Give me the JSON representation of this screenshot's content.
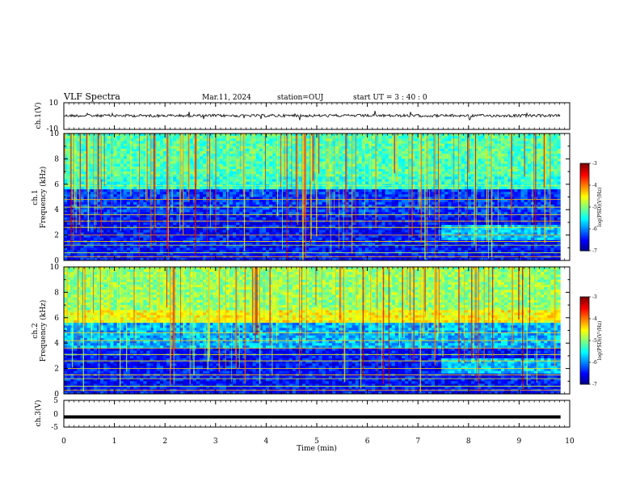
{
  "header": {
    "title": "VLF Spectra",
    "date": "Mar.11, 2024",
    "station": "station=OUJ",
    "start": "start  UT  =   3  : 40 : 0"
  },
  "chart_data": [
    {
      "type": "line",
      "name": "ch1-waveform",
      "ylabel": "ch.1(V)",
      "ylim": [
        -10,
        10
      ],
      "yticks": [
        "10",
        "-10"
      ],
      "xlim": [
        0,
        10
      ]
    },
    {
      "type": "heatmap",
      "name": "ch1-spectrogram",
      "ylabel": "ch.1\nFrequency (kHz)",
      "ylabel_line1": "ch.1",
      "ylabel_line2": "Frequency  (kHz)",
      "ylim": [
        0,
        10
      ],
      "yticks": [
        "0",
        "2",
        "4",
        "6",
        "8",
        "10"
      ],
      "xlim": [
        0,
        10
      ],
      "colorbar": {
        "label": "log(PSD)(V²/Hz)",
        "range": [
          -7,
          -3
        ],
        "ticks": [
          "-3",
          "-4",
          "-5",
          "-6",
          "-7"
        ]
      }
    },
    {
      "type": "heatmap",
      "name": "ch2-spectrogram",
      "ylabel_line1": "ch.2",
      "ylabel_line2": "Frequency  (kHz)",
      "ylim": [
        0,
        10
      ],
      "yticks": [
        "0",
        "2",
        "4",
        "6",
        "8",
        "10"
      ],
      "xlim": [
        0,
        10
      ],
      "colorbar": {
        "label": "log(PSD)(V²/Hz)",
        "range": [
          -7,
          -3
        ],
        "ticks": [
          "-3",
          "-4",
          "-5",
          "-6",
          "-7"
        ]
      }
    },
    {
      "type": "line",
      "name": "ch3-waveform",
      "ylabel": "ch.3(V)",
      "ylim": [
        -5,
        5
      ],
      "yticks": [
        "5",
        "0",
        "-5"
      ],
      "xlim": [
        0,
        10
      ],
      "value": -1.2
    }
  ],
  "xaxis": {
    "label": "Time  (min)",
    "ticks": [
      "0",
      "1",
      "2",
      "3",
      "4",
      "5",
      "6",
      "7",
      "8",
      "9",
      "10"
    ],
    "range": [
      0,
      10
    ],
    "data_end": 9.82
  }
}
